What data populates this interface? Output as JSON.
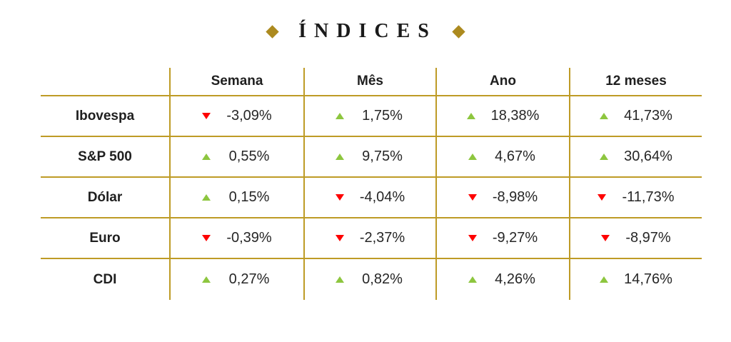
{
  "title": {
    "text": "ÍNDICES"
  },
  "table": {
    "columns": [
      "Semana",
      "Mês",
      "Ano",
      "12 meses"
    ],
    "rows": [
      {
        "label": "Ibovespa",
        "values": [
          {
            "dir": "down",
            "value": "-3,09%"
          },
          {
            "dir": "up",
            "value": "1,75%"
          },
          {
            "dir": "up",
            "value": "18,38%"
          },
          {
            "dir": "up",
            "value": "41,73%"
          }
        ]
      },
      {
        "label": "S&P 500",
        "values": [
          {
            "dir": "up",
            "value": "0,55%"
          },
          {
            "dir": "up",
            "value": "9,75%"
          },
          {
            "dir": "up",
            "value": "4,67%"
          },
          {
            "dir": "up",
            "value": "30,64%"
          }
        ]
      },
      {
        "label": "Dólar",
        "values": [
          {
            "dir": "up",
            "value": "0,15%"
          },
          {
            "dir": "down",
            "value": "-4,04%"
          },
          {
            "dir": "down",
            "value": "-8,98%"
          },
          {
            "dir": "down",
            "value": "-11,73%"
          }
        ]
      },
      {
        "label": "Euro",
        "values": [
          {
            "dir": "down",
            "value": "-0,39%"
          },
          {
            "dir": "down",
            "value": "-2,37%"
          },
          {
            "dir": "down",
            "value": "-9,27%"
          },
          {
            "dir": "down",
            "value": "-8,97%"
          }
        ]
      },
      {
        "label": "CDI",
        "values": [
          {
            "dir": "up",
            "value": "0,27%"
          },
          {
            "dir": "up",
            "value": "0,82%"
          },
          {
            "dir": "up",
            "value": "4,26%"
          },
          {
            "dir": "up",
            "value": "14,76%"
          }
        ]
      }
    ]
  },
  "colors": {
    "grid_line": "#be9b26",
    "diamond": "#ac8a1f",
    "up_triangle": "#8dc63f",
    "down_triangle": "#fe0000",
    "text": "#1f1f1f"
  },
  "icons": {
    "diamond": "diamond-icon",
    "up": "up-triangle-icon",
    "down": "down-triangle-icon"
  },
  "chart_data": {
    "type": "table",
    "title": "ÍNDICES",
    "columns": [
      "Semana",
      "Mês",
      "Ano",
      "12 meses"
    ],
    "rows": [
      "Ibovespa",
      "S&P 500",
      "Dólar",
      "Euro",
      "CDI"
    ],
    "values_pct": [
      [
        -3.09,
        1.75,
        18.38,
        41.73
      ],
      [
        0.55,
        9.75,
        4.67,
        30.64
      ],
      [
        0.15,
        -4.04,
        -8.98,
        -11.73
      ],
      [
        -0.39,
        -2.37,
        -9.27,
        -8.97
      ],
      [
        0.27,
        0.82,
        4.26,
        14.76
      ]
    ]
  }
}
